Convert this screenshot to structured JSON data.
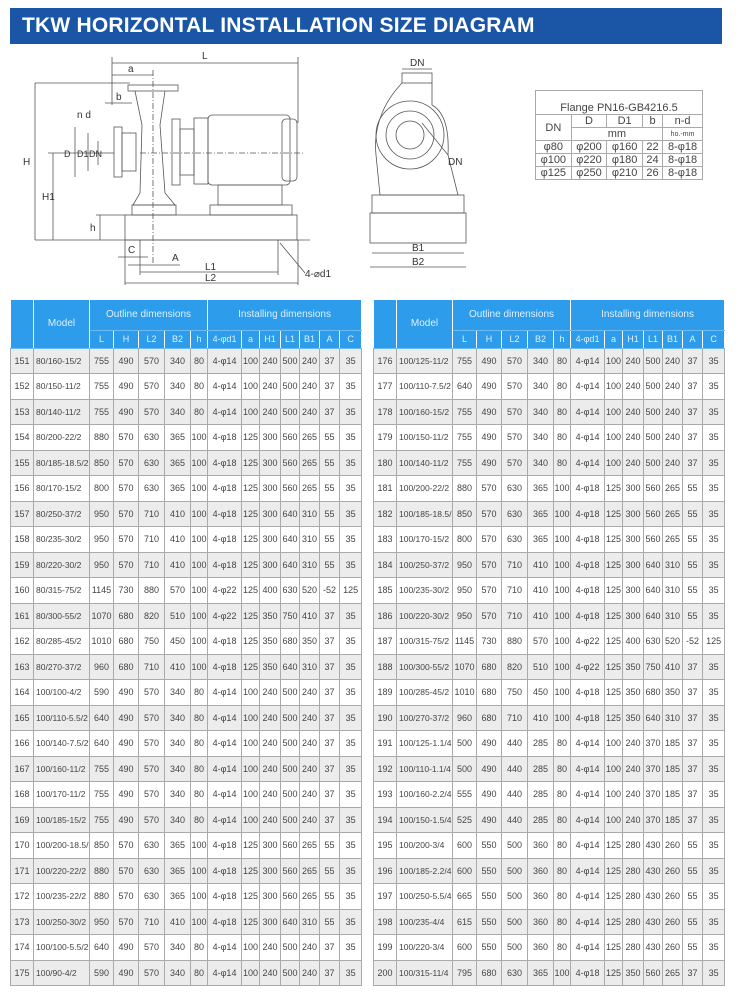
{
  "title": "TKW HORIZONTAL INSTALLATION SIZE DIAGRAM",
  "diagram": {
    "labels": {
      "L": "L",
      "a": "a",
      "b": "b",
      "nd": "n d",
      "H": "H",
      "H1": "H1",
      "D": "D",
      "D1": "D1",
      "DN": "DN",
      "h": "h",
      "C": "C",
      "A": "A",
      "L1": "L1",
      "L2": "L2",
      "d1": "4-⌀d1",
      "DN_top": "DN",
      "DN_side": "DN",
      "B1": "B1",
      "B2": "B2"
    }
  },
  "flange": {
    "caption": "Flange PN16-GB4216.5",
    "headers": {
      "dn": "DN",
      "d": "D",
      "d1": "D1",
      "b": "b",
      "nd": "n-d",
      "unit": "mm",
      "unit2": "ho.-mm"
    },
    "rows": [
      [
        "φ80",
        "φ200",
        "φ160",
        "22",
        "8-φ18"
      ],
      [
        "φ100",
        "φ220",
        "φ180",
        "24",
        "8-φ18"
      ],
      [
        "φ125",
        "φ250",
        "φ210",
        "26",
        "8-φ18"
      ]
    ]
  },
  "table": {
    "model": "Model",
    "outline": "Outline dimensions",
    "installing": "Installing dimensions",
    "columns": [
      "L",
      "H",
      "L2",
      "B2",
      "h",
      "4-φd1",
      "a",
      "H1",
      "L1",
      "B1",
      "A",
      "C"
    ],
    "left": [
      [
        "151",
        "80/160-15/2",
        "755",
        "490",
        "570",
        "340",
        "80",
        "4-φ14",
        "100",
        "240",
        "500",
        "240",
        "37",
        "35"
      ],
      [
        "152",
        "80/150-11/2",
        "755",
        "490",
        "570",
        "340",
        "80",
        "4-φ14",
        "100",
        "240",
        "500",
        "240",
        "37",
        "35"
      ],
      [
        "153",
        "80/140-11/2",
        "755",
        "490",
        "570",
        "340",
        "80",
        "4-φ14",
        "100",
        "240",
        "500",
        "240",
        "37",
        "35"
      ],
      [
        "154",
        "80/200-22/2",
        "880",
        "570",
        "630",
        "365",
        "100",
        "4-φ18",
        "125",
        "300",
        "560",
        "265",
        "55",
        "35"
      ],
      [
        "155",
        "80/185-18.5/2",
        "850",
        "570",
        "630",
        "365",
        "100",
        "4-φ18",
        "125",
        "300",
        "560",
        "265",
        "55",
        "35"
      ],
      [
        "156",
        "80/170-15/2",
        "800",
        "570",
        "630",
        "365",
        "100",
        "4-φ18",
        "125",
        "300",
        "560",
        "265",
        "55",
        "35"
      ],
      [
        "157",
        "80/250-37/2",
        "950",
        "570",
        "710",
        "410",
        "100",
        "4-φ18",
        "125",
        "300",
        "640",
        "310",
        "55",
        "35"
      ],
      [
        "158",
        "80/235-30/2",
        "950",
        "570",
        "710",
        "410",
        "100",
        "4-φ18",
        "125",
        "300",
        "640",
        "310",
        "55",
        "35"
      ],
      [
        "159",
        "80/220-30/2",
        "950",
        "570",
        "710",
        "410",
        "100",
        "4-φ18",
        "125",
        "300",
        "640",
        "310",
        "55",
        "35"
      ],
      [
        "160",
        "80/315-75/2",
        "1145",
        "730",
        "880",
        "570",
        "100",
        "4-φ22",
        "125",
        "400",
        "630",
        "520",
        "-52",
        "125"
      ],
      [
        "161",
        "80/300-55/2",
        "1070",
        "680",
        "820",
        "510",
        "100",
        "4-φ22",
        "125",
        "350",
        "750",
        "410",
        "37",
        "35"
      ],
      [
        "162",
        "80/285-45/2",
        "1010",
        "680",
        "750",
        "450",
        "100",
        "4-φ18",
        "125",
        "350",
        "680",
        "350",
        "37",
        "35"
      ],
      [
        "163",
        "80/270-37/2",
        "960",
        "680",
        "710",
        "410",
        "100",
        "4-φ18",
        "125",
        "350",
        "640",
        "310",
        "37",
        "35"
      ],
      [
        "164",
        "100/100-4/2",
        "590",
        "490",
        "570",
        "340",
        "80",
        "4-φ14",
        "100",
        "240",
        "500",
        "240",
        "37",
        "35"
      ],
      [
        "165",
        "100/110-5.5/2",
        "640",
        "490",
        "570",
        "340",
        "80",
        "4-φ14",
        "100",
        "240",
        "500",
        "240",
        "37",
        "35"
      ],
      [
        "166",
        "100/140-7.5/2",
        "640",
        "490",
        "570",
        "340",
        "80",
        "4-φ14",
        "100",
        "240",
        "500",
        "240",
        "37",
        "35"
      ],
      [
        "167",
        "100/160-11/2",
        "755",
        "490",
        "570",
        "340",
        "80",
        "4-φ14",
        "100",
        "240",
        "500",
        "240",
        "37",
        "35"
      ],
      [
        "168",
        "100/170-11/2",
        "755",
        "490",
        "570",
        "340",
        "80",
        "4-φ14",
        "100",
        "240",
        "500",
        "240",
        "37",
        "35"
      ],
      [
        "169",
        "100/185-15/2",
        "755",
        "490",
        "570",
        "340",
        "80",
        "4-φ14",
        "100",
        "240",
        "500",
        "240",
        "37",
        "35"
      ],
      [
        "170",
        "100/200-18.5/2",
        "850",
        "570",
        "630",
        "365",
        "100",
        "4-φ18",
        "125",
        "300",
        "560",
        "265",
        "55",
        "35"
      ],
      [
        "171",
        "100/220-22/2",
        "880",
        "570",
        "630",
        "365",
        "100",
        "4-φ18",
        "125",
        "300",
        "560",
        "265",
        "55",
        "35"
      ],
      [
        "172",
        "100/235-22/2",
        "880",
        "570",
        "630",
        "365",
        "100",
        "4-φ18",
        "125",
        "300",
        "560",
        "265",
        "55",
        "35"
      ],
      [
        "173",
        "100/250-30/2",
        "950",
        "570",
        "710",
        "410",
        "100",
        "4-φ18",
        "125",
        "300",
        "640",
        "310",
        "55",
        "35"
      ],
      [
        "174",
        "100/100-5.5/2",
        "640",
        "490",
        "570",
        "340",
        "80",
        "4-φ14",
        "100",
        "240",
        "500",
        "240",
        "37",
        "35"
      ],
      [
        "175",
        "100/90-4/2",
        "590",
        "490",
        "570",
        "340",
        "80",
        "4-φ14",
        "100",
        "240",
        "500",
        "240",
        "37",
        "35"
      ]
    ],
    "right": [
      [
        "176",
        "100/125-11/2",
        "755",
        "490",
        "570",
        "340",
        "80",
        "4-φ14",
        "100",
        "240",
        "500",
        "240",
        "37",
        "35"
      ],
      [
        "177",
        "100/110-7.5/2",
        "640",
        "490",
        "570",
        "340",
        "80",
        "4-φ14",
        "100",
        "240",
        "500",
        "240",
        "37",
        "35"
      ],
      [
        "178",
        "100/160-15/2",
        "755",
        "490",
        "570",
        "340",
        "80",
        "4-φ14",
        "100",
        "240",
        "500",
        "240",
        "37",
        "35"
      ],
      [
        "179",
        "100/150-11/2",
        "755",
        "490",
        "570",
        "340",
        "80",
        "4-φ14",
        "100",
        "240",
        "500",
        "240",
        "37",
        "35"
      ],
      [
        "180",
        "100/140-11/2",
        "755",
        "490",
        "570",
        "340",
        "80",
        "4-φ14",
        "100",
        "240",
        "500",
        "240",
        "37",
        "35"
      ],
      [
        "181",
        "100/200-22/2",
        "880",
        "570",
        "630",
        "365",
        "100",
        "4-φ18",
        "125",
        "300",
        "560",
        "265",
        "55",
        "35"
      ],
      [
        "182",
        "100/185-18.5/2",
        "850",
        "570",
        "630",
        "365",
        "100",
        "4-φ18",
        "125",
        "300",
        "560",
        "265",
        "55",
        "35"
      ],
      [
        "183",
        "100/170-15/2",
        "800",
        "570",
        "630",
        "365",
        "100",
        "4-φ18",
        "125",
        "300",
        "560",
        "265",
        "55",
        "35"
      ],
      [
        "184",
        "100/250-37/2",
        "950",
        "570",
        "710",
        "410",
        "100",
        "4-φ18",
        "125",
        "300",
        "640",
        "310",
        "55",
        "35"
      ],
      [
        "185",
        "100/235-30/2",
        "950",
        "570",
        "710",
        "410",
        "100",
        "4-φ18",
        "125",
        "300",
        "640",
        "310",
        "55",
        "35"
      ],
      [
        "186",
        "100/220-30/2",
        "950",
        "570",
        "710",
        "410",
        "100",
        "4-φ18",
        "125",
        "300",
        "640",
        "310",
        "55",
        "35"
      ],
      [
        "187",
        "100/315-75/2",
        "1145",
        "730",
        "880",
        "570",
        "100",
        "4-φ22",
        "125",
        "400",
        "630",
        "520",
        "-52",
        "125"
      ],
      [
        "188",
        "100/300-55/2",
        "1070",
        "680",
        "820",
        "510",
        "100",
        "4-φ22",
        "125",
        "350",
        "750",
        "410",
        "37",
        "35"
      ],
      [
        "189",
        "100/285-45/2",
        "1010",
        "680",
        "750",
        "450",
        "100",
        "4-φ18",
        "125",
        "350",
        "680",
        "350",
        "37",
        "35"
      ],
      [
        "190",
        "100/270-37/2",
        "960",
        "680",
        "710",
        "410",
        "100",
        "4-φ18",
        "125",
        "350",
        "640",
        "310",
        "37",
        "35"
      ],
      [
        "191",
        "100/125-1.1/4",
        "500",
        "490",
        "440",
        "285",
        "80",
        "4-φ14",
        "100",
        "240",
        "370",
        "185",
        "37",
        "35"
      ],
      [
        "192",
        "100/110-1.1/4",
        "500",
        "490",
        "440",
        "285",
        "80",
        "4-φ14",
        "100",
        "240",
        "370",
        "185",
        "37",
        "35"
      ],
      [
        "193",
        "100/160-2.2/4",
        "555",
        "490",
        "440",
        "285",
        "80",
        "4-φ14",
        "100",
        "240",
        "370",
        "185",
        "37",
        "35"
      ],
      [
        "194",
        "100/150-1.5/4",
        "525",
        "490",
        "440",
        "285",
        "80",
        "4-φ14",
        "100",
        "240",
        "370",
        "185",
        "37",
        "35"
      ],
      [
        "195",
        "100/200-3/4",
        "600",
        "550",
        "500",
        "360",
        "80",
        "4-φ14",
        "125",
        "280",
        "430",
        "260",
        "55",
        "35"
      ],
      [
        "196",
        "100/185-2.2/4",
        "600",
        "550",
        "500",
        "360",
        "80",
        "4-φ14",
        "125",
        "280",
        "430",
        "260",
        "55",
        "35"
      ],
      [
        "197",
        "100/250-5.5/4",
        "665",
        "550",
        "500",
        "360",
        "80",
        "4-φ14",
        "125",
        "280",
        "430",
        "260",
        "55",
        "35"
      ],
      [
        "198",
        "100/235-4/4",
        "615",
        "550",
        "500",
        "360",
        "80",
        "4-φ14",
        "125",
        "280",
        "430",
        "260",
        "55",
        "35"
      ],
      [
        "199",
        "100/220-3/4",
        "600",
        "550",
        "500",
        "360",
        "80",
        "4-φ14",
        "125",
        "280",
        "430",
        "260",
        "55",
        "35"
      ],
      [
        "200",
        "100/315-11/4",
        "795",
        "680",
        "630",
        "365",
        "100",
        "4-φ18",
        "125",
        "350",
        "560",
        "265",
        "37",
        "35"
      ]
    ]
  }
}
